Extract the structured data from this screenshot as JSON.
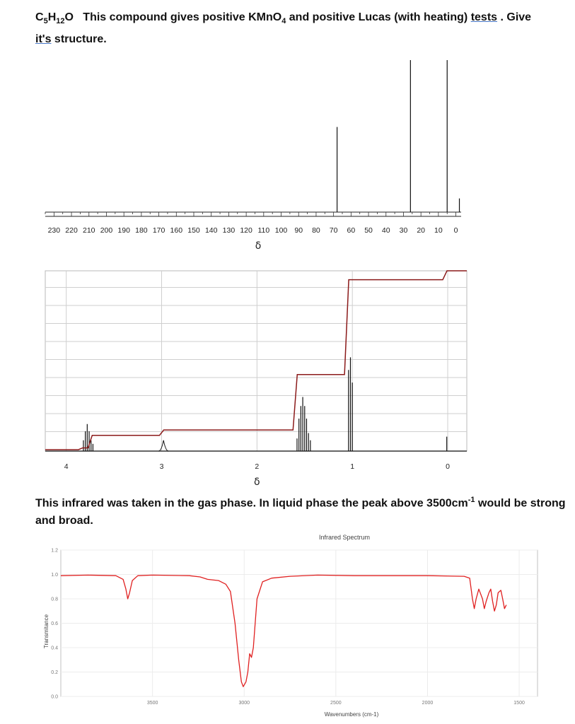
{
  "question": {
    "formula_parts": [
      "C",
      "5",
      "H",
      "12",
      "O"
    ],
    "text_before": "   This compound gives positive KMnO",
    "kmno4_sub": "4",
    "text_middle": " and positive Lucas (with heating) ",
    "tests_word": "tests",
    "text_after": " . Give ",
    "its_word": "it's",
    "text_end": " structure."
  },
  "ir_note": {
    "text_before": "This infrared was taken in the gas phase. In liquid phase the peak above 3500cm",
    "superscript": "-1",
    "text_after": " would be strong and broad."
  },
  "chart_data": [
    {
      "type": "bar",
      "name": "13C NMR spectrum",
      "xlabel": "δ",
      "x_ticks": [
        230,
        220,
        210,
        200,
        190,
        180,
        170,
        160,
        150,
        140,
        130,
        120,
        110,
        100,
        90,
        80,
        70,
        60,
        50,
        40,
        30,
        20,
        10,
        0
      ],
      "xlim": [
        235,
        -3
      ],
      "peaks": [
        {
          "shift": 68,
          "height": 0.56
        },
        {
          "shift": 26,
          "height": 1.0
        },
        {
          "shift": 5,
          "height": 1.0
        },
        {
          "shift": -2,
          "height": 0.09
        }
      ]
    },
    {
      "type": "line",
      "name": "1H NMR spectrum with integration",
      "xlabel": "δ",
      "x_ticks": [
        4,
        3,
        2,
        1,
        0
      ],
      "xlim": [
        4.22,
        -0.2
      ],
      "peaks": [
        {
          "shift": 3.82,
          "height": 0.06
        },
        {
          "shift": 3.8,
          "height": 0.11
        },
        {
          "shift": 3.78,
          "height": 0.15
        },
        {
          "shift": 3.76,
          "height": 0.11
        },
        {
          "shift": 3.74,
          "height": 0.06
        },
        {
          "shift": 3.72,
          "height": 0.04
        },
        {
          "shift": 2.98,
          "height": 0.06
        },
        {
          "shift": 1.58,
          "height": 0.07
        },
        {
          "shift": 1.56,
          "height": 0.18
        },
        {
          "shift": 1.54,
          "height": 0.25
        },
        {
          "shift": 1.52,
          "height": 0.3
        },
        {
          "shift": 1.5,
          "height": 0.25
        },
        {
          "shift": 1.48,
          "height": 0.18
        },
        {
          "shift": 1.46,
          "height": 0.1
        },
        {
          "shift": 1.44,
          "height": 0.06
        },
        {
          "shift": 1.04,
          "height": 0.45
        },
        {
          "shift": 1.02,
          "height": 0.52
        },
        {
          "shift": 1.0,
          "height": 0.38
        },
        {
          "shift": 0.01,
          "height": 0.08
        }
      ],
      "integration_steps": [
        {
          "shift": 3.85,
          "level": 0.01
        },
        {
          "shift": 3.75,
          "level": 0.08
        },
        {
          "shift": 3.0,
          "level": 0.11
        },
        {
          "shift": 1.6,
          "level": 0.42
        },
        {
          "shift": 1.06,
          "level": 0.95
        },
        {
          "shift": 0.03,
          "level": 1.0
        }
      ],
      "colors": {
        "spectrum": "#111111",
        "integral": "#8b1a1a"
      }
    },
    {
      "type": "line",
      "title": "Infrared Spectrum",
      "xlabel": "Wavenumbers (cm-1)",
      "ylabel": "Transmitance",
      "x_ticks": [
        3500,
        3000,
        2500,
        2000,
        1500
      ],
      "y_ticks": [
        "0.0",
        "0.2",
        "0.4",
        "0.6",
        "0.8",
        "1.0",
        "1.2"
      ],
      "xlim": [
        4000,
        1400
      ],
      "ylim": [
        0,
        1.2
      ],
      "color": "#e02020",
      "points": [
        [
          4000,
          0.99
        ],
        [
          3850,
          0.995
        ],
        [
          3700,
          0.99
        ],
        [
          3660,
          0.96
        ],
        [
          3645,
          0.88
        ],
        [
          3635,
          0.8
        ],
        [
          3625,
          0.85
        ],
        [
          3610,
          0.95
        ],
        [
          3580,
          0.99
        ],
        [
          3500,
          0.995
        ],
        [
          3300,
          0.99
        ],
        [
          3240,
          0.98
        ],
        [
          3200,
          0.96
        ],
        [
          3140,
          0.95
        ],
        [
          3100,
          0.92
        ],
        [
          3075,
          0.86
        ],
        [
          3050,
          0.6
        ],
        [
          3030,
          0.3
        ],
        [
          3015,
          0.12
        ],
        [
          3005,
          0.08
        ],
        [
          2990,
          0.12
        ],
        [
          2980,
          0.2
        ],
        [
          2970,
          0.35
        ],
        [
          2960,
          0.32
        ],
        [
          2950,
          0.4
        ],
        [
          2930,
          0.8
        ],
        [
          2900,
          0.94
        ],
        [
          2850,
          0.97
        ],
        [
          2750,
          0.985
        ],
        [
          2600,
          0.995
        ],
        [
          2400,
          0.99
        ],
        [
          2000,
          0.99
        ],
        [
          1800,
          0.985
        ],
        [
          1770,
          0.97
        ],
        [
          1755,
          0.8
        ],
        [
          1745,
          0.72
        ],
        [
          1735,
          0.8
        ],
        [
          1720,
          0.88
        ],
        [
          1700,
          0.8
        ],
        [
          1690,
          0.72
        ],
        [
          1680,
          0.78
        ],
        [
          1665,
          0.85
        ],
        [
          1655,
          0.88
        ],
        [
          1645,
          0.78
        ],
        [
          1635,
          0.7
        ],
        [
          1625,
          0.75
        ],
        [
          1615,
          0.85
        ],
        [
          1600,
          0.87
        ],
        [
          1590,
          0.8
        ],
        [
          1580,
          0.72
        ],
        [
          1570,
          0.75
        ]
      ]
    }
  ]
}
